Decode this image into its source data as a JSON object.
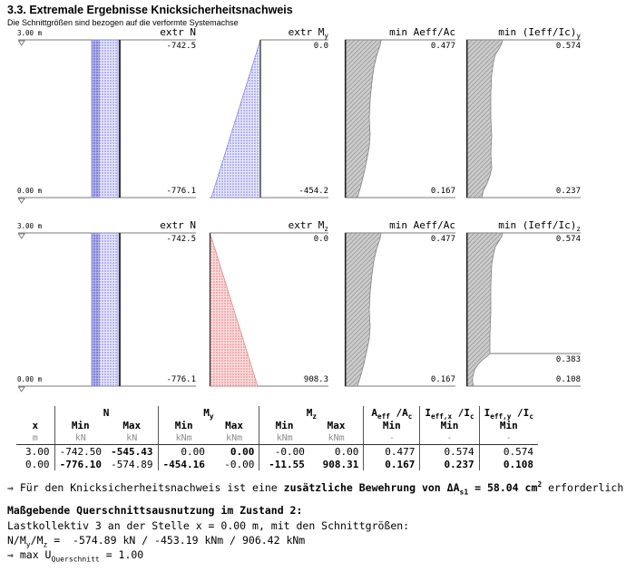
{
  "header": {
    "title": "3.3. Extremale Ergebnisse Knicksicherheitsnachweis",
    "subtitle": "Die Schnittgrößen sind bezogen auf die verformte Systemachse"
  },
  "colors": {
    "blue_light": "#b2b2ef",
    "blue_dark": "#7f7fd8",
    "red_light": "#f0aeae",
    "gray_hatch": "#cbcbcb"
  },
  "diagrams": {
    "rows": [
      {
        "elev_top": "3.00 m",
        "elev_bottom": "0.00 m",
        "panels": [
          {
            "label": [
              {
                "t": "extr N"
              }
            ],
            "top": "-742.5",
            "bottom": "-776.1"
          },
          {
            "label": [
              {
                "t": "extr M"
              },
              {
                "t": "y",
                "s": 1
              }
            ],
            "top": "0.0",
            "bottom": "-454.2"
          },
          {
            "label": [
              {
                "t": "min Aeff/Ac"
              }
            ],
            "top": "0.477",
            "bottom": "0.167"
          },
          {
            "label": [
              {
                "t": "min (Ieff/Ic)"
              },
              {
                "t": "y",
                "s": 1
              }
            ],
            "top": "0.574",
            "bottom": "0.237"
          }
        ]
      },
      {
        "elev_top": "3.00 m",
        "elev_bottom": "0.00 m",
        "panels": [
          {
            "label": [
              {
                "t": "extr N"
              }
            ],
            "top": "-742.5",
            "bottom": "-776.1"
          },
          {
            "label": [
              {
                "t": "extr M"
              },
              {
                "t": "z",
                "s": 1
              }
            ],
            "top": "0.0",
            "bottom": "908.3"
          },
          {
            "label": [
              {
                "t": "min Aeff/Ac"
              }
            ],
            "top": "0.477",
            "bottom": "0.167"
          },
          {
            "label": [
              {
                "t": "min (Ieff/Ic)"
              },
              {
                "t": "z",
                "s": 1
              }
            ],
            "top": "0.574",
            "step": "0.383",
            "bottom": "0.108"
          }
        ]
      }
    ]
  },
  "table": {
    "x_header": "x",
    "groups": [
      {
        "label": [
          {
            "t": "N"
          }
        ]
      },
      {
        "label": [
          {
            "t": "M"
          },
          {
            "t": "y",
            "s": 1
          }
        ]
      },
      {
        "label": [
          {
            "t": "M"
          },
          {
            "t": "z",
            "s": 1
          }
        ]
      },
      {
        "label": [
          {
            "t": "A"
          },
          {
            "t": "eff",
            "s": 1
          },
          {
            "t": " /A"
          },
          {
            "t": "c",
            "s": 1
          }
        ]
      },
      {
        "label": [
          {
            "t": "I"
          },
          {
            "t": "eff,x",
            "s": 1
          },
          {
            "t": " /I"
          },
          {
            "t": "c",
            "s": 1
          }
        ]
      },
      {
        "label": [
          {
            "t": "I"
          },
          {
            "t": "eff,y",
            "s": 1
          },
          {
            "t": " /I"
          },
          {
            "t": "c",
            "s": 1
          }
        ]
      }
    ],
    "sub_headers": [
      "Min",
      "Max",
      "Min",
      "Max",
      "Min",
      "Max",
      "Min",
      "Min",
      "Min"
    ],
    "units": [
      "m",
      "kN",
      "kN",
      "kNm",
      "kNm",
      "kNm",
      "kNm",
      "-",
      "-",
      "-"
    ],
    "rows": [
      {
        "x": "3.00",
        "c": [
          "-742.50",
          "-545.43",
          "0.00",
          "0.00",
          "-0.00",
          "0.00",
          "0.477",
          "0.574",
          "0.574"
        ]
      },
      {
        "x": "0.00",
        "c": [
          "-776.10",
          "-574.89",
          "-454.16",
          "-0.00",
          "-11.55",
          "908.31",
          "0.167",
          "0.237",
          "0.108"
        ]
      }
    ]
  },
  "notes": {
    "n1": [
      {
        "t": "⇒ Für den Knicksicherheitsnachweis ist eine "
      },
      {
        "t": "zusätzliche Bewehrung von ΔA",
        "b": 1
      },
      {
        "t": "s1",
        "b": 1,
        "s": 1
      },
      {
        "t": " = 58.04 cm",
        "b": 1
      },
      {
        "t": "2",
        "b": 1,
        "p": 1
      },
      {
        "t": " erforderlich."
      }
    ],
    "n2": [
      {
        "t": "Maßgebende Querschnittsausnutzung im Zustand 2:",
        "b": 1
      }
    ],
    "n3": [
      {
        "t": "Lastkollektiv 3 an der Stelle x = 0.00 m, mit den Schnittgrößen:"
      }
    ],
    "n4": [
      {
        "t": "N/M"
      },
      {
        "t": "y",
        "s": 1
      },
      {
        "t": "/M"
      },
      {
        "t": "z",
        "s": 1
      },
      {
        "t": " =  -574.89 kN / -453.19 kNm / 906.42 kNm"
      }
    ],
    "n5": [
      {
        "t": "⇒ max U"
      },
      {
        "t": "Querschnitt",
        "s": 1
      },
      {
        "t": " = 1.00"
      }
    ]
  }
}
